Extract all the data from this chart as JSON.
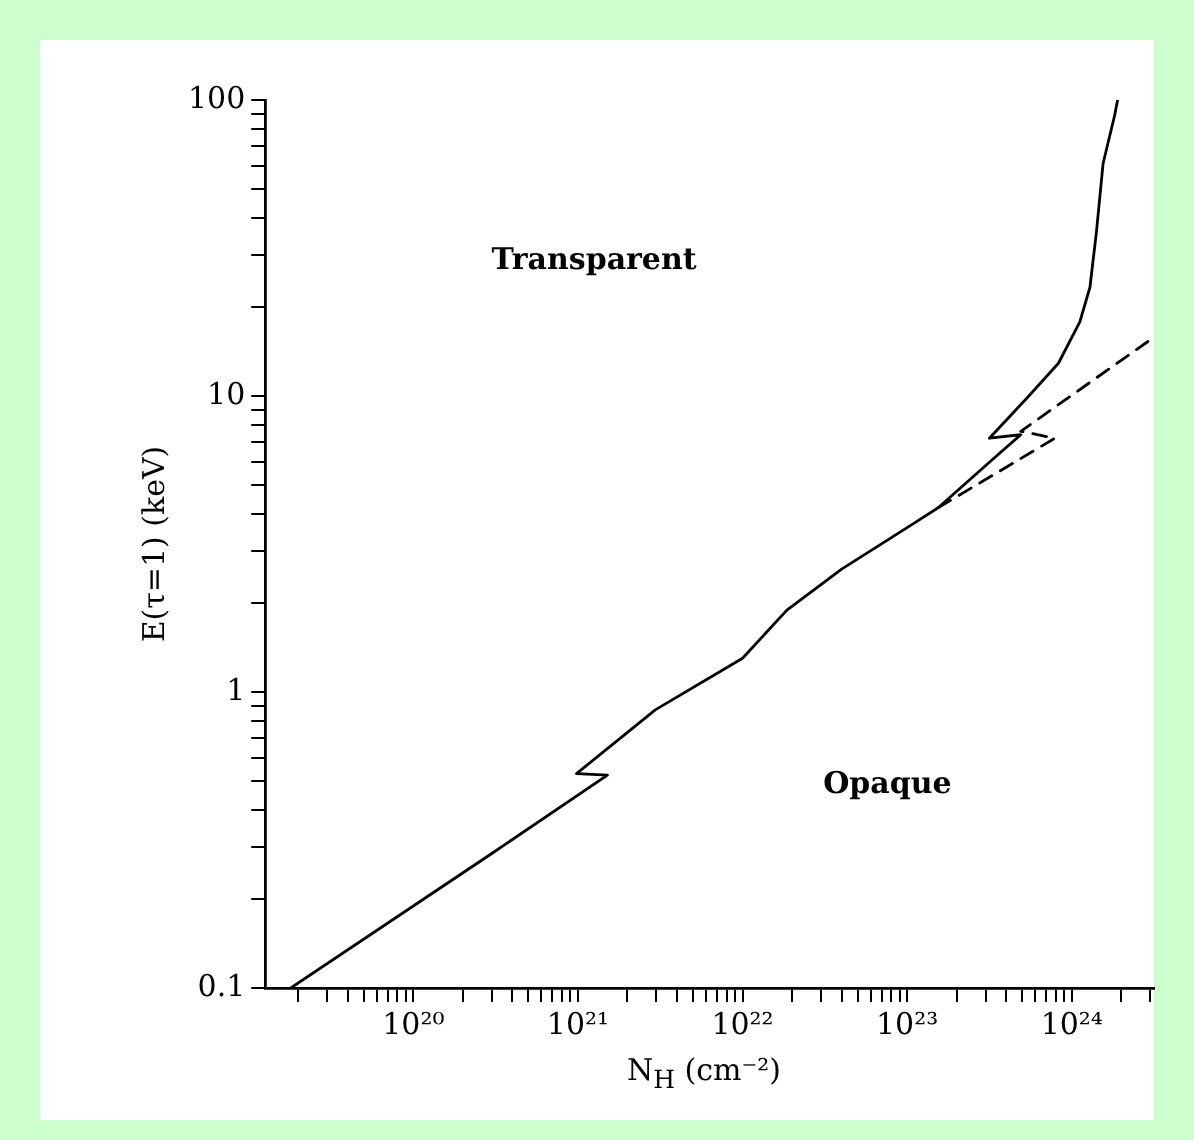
{
  "chart_data": {
    "type": "line",
    "xlabel": "N$_{H}$ (cm⁻²)",
    "ylabel": "E(τ=1) (keV)",
    "log": "xy",
    "xlim": [
      1.26e+19,
      3.16e+24
    ],
    "ylim": [
      0.1,
      100
    ],
    "xticks": [
      {
        "value": 2e+19,
        "label": null
      },
      {
        "value": 3e+19,
        "label": null
      },
      {
        "value": 4e+19,
        "label": null
      },
      {
        "value": 5e+19,
        "label": null
      },
      {
        "value": 6e+19,
        "label": null
      },
      {
        "value": 7e+19,
        "label": null
      },
      {
        "value": 8e+19,
        "label": null
      },
      {
        "value": 9e+19,
        "label": null
      },
      {
        "value": 1e+20,
        "label": "10²⁰"
      },
      {
        "value": 2e+20,
        "label": null
      },
      {
        "value": 3e+20,
        "label": null
      },
      {
        "value": 4e+20,
        "label": null
      },
      {
        "value": 5e+20,
        "label": null
      },
      {
        "value": 6e+20,
        "label": null
      },
      {
        "value": 7e+20,
        "label": null
      },
      {
        "value": 8e+20,
        "label": null
      },
      {
        "value": 9e+20,
        "label": null
      },
      {
        "value": 1e+21,
        "label": "10²¹"
      },
      {
        "value": 2e+21,
        "label": null
      },
      {
        "value": 3e+21,
        "label": null
      },
      {
        "value": 4e+21,
        "label": null
      },
      {
        "value": 5e+21,
        "label": null
      },
      {
        "value": 6e+21,
        "label": null
      },
      {
        "value": 7e+21,
        "label": null
      },
      {
        "value": 8e+21,
        "label": null
      },
      {
        "value": 9e+21,
        "label": null
      },
      {
        "value": 1e+22,
        "label": "10²²"
      },
      {
        "value": 2e+22,
        "label": null
      },
      {
        "value": 3e+22,
        "label": null
      },
      {
        "value": 4e+22,
        "label": null
      },
      {
        "value": 5e+22,
        "label": null
      },
      {
        "value": 6e+22,
        "label": null
      },
      {
        "value": 7e+22,
        "label": null
      },
      {
        "value": 8e+22,
        "label": null
      },
      {
        "value": 9e+22,
        "label": null
      },
      {
        "value": 1e+23,
        "label": "10²³"
      },
      {
        "value": 2e+23,
        "label": null
      },
      {
        "value": 3e+23,
        "label": null
      },
      {
        "value": 4e+23,
        "label": null
      },
      {
        "value": 5e+23,
        "label": null
      },
      {
        "value": 6e+23,
        "label": null
      },
      {
        "value": 7e+23,
        "label": null
      },
      {
        "value": 8e+23,
        "label": null
      },
      {
        "value": 9e+23,
        "label": null
      },
      {
        "value": 1e+24,
        "label": "10²⁴"
      },
      {
        "value": 2e+24,
        "label": null
      },
      {
        "value": 3e+24,
        "label": null
      }
    ],
    "yticks": [
      0.1,
      {
        "value": 0.2,
        "label": null
      },
      {
        "value": 0.3,
        "label": null
      },
      {
        "value": 0.4,
        "label": null
      },
      {
        "value": 0.5,
        "label": null
      },
      {
        "value": 0.6,
        "label": null
      },
      {
        "value": 0.7,
        "label": null
      },
      {
        "value": 0.8,
        "label": null
      },
      {
        "value": 0.9,
        "label": null
      },
      1,
      {
        "value": 2,
        "label": null
      },
      {
        "value": 3,
        "label": null
      },
      {
        "value": 4,
        "label": null
      },
      {
        "value": 5,
        "label": null
      },
      {
        "value": 6,
        "label": null
      },
      {
        "value": 7,
        "label": null
      },
      {
        "value": 8,
        "label": null
      },
      {
        "value": 9,
        "label": null
      },
      10,
      {
        "value": 20,
        "label": null
      },
      {
        "value": 30,
        "label": null
      },
      {
        "value": 40,
        "label": null
      },
      {
        "value": 50,
        "label": null
      },
      {
        "value": 60,
        "label": null
      },
      {
        "value": 70,
        "label": null
      },
      {
        "value": 80,
        "label": null
      },
      {
        "value": 90,
        "label": null
      },
      100
    ],
    "annotations": [
      "Transparent",
      "Opaque"
    ],
    "series": [
      {
        "color": "#000000",
        "line_style": "solid",
        "x": [
          1.8e+19,
          2.95e+20,
          1.51e+21,
          9.8e+20,
          2.95e+21,
          1e+22,
          1.86e+22,
          4e+22,
          1e+23,
          1.55e+23,
          3.3e+23,
          4.9e+23,
          3.16e+23,
          5.4e+23,
          8.3e+23,
          1.12e+24,
          1.29e+24,
          1.41e+24,
          1.55e+24,
          1.82e+24,
          1.9e+24
        ],
        "values": [
          0.1,
          0.283,
          0.524,
          0.53,
          0.87,
          1.3,
          1.89,
          2.6,
          3.59,
          4.2,
          6.1,
          7.4,
          7.2,
          9.9,
          12.9,
          17.8,
          23.3,
          35.5,
          61,
          88.5,
          100
        ]
      },
      {
        "color": "#000000",
        "line_style": "dashed",
        "x": [
          1.55e+23,
          7.9e+23,
          4.9e+23,
          3.16e+24
        ],
        "values": [
          4.2,
          7.2,
          7.6,
          15.8
        ]
      }
    ]
  }
}
